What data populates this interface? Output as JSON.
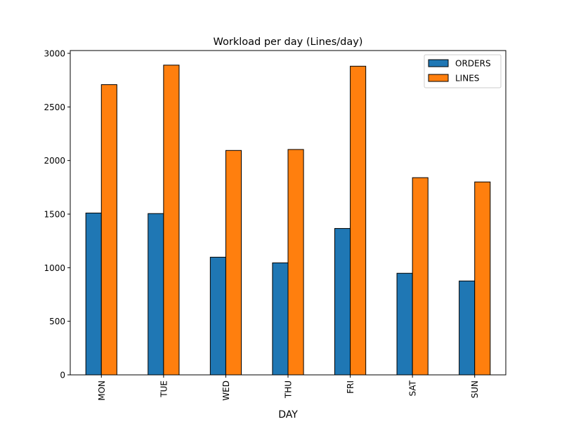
{
  "chart_data": {
    "type": "bar",
    "title": "Workload per day (Lines/day)",
    "xlabel": "DAY",
    "ylabel": "",
    "categories": [
      "MON",
      "TUE",
      "WED",
      "THU",
      "FRI",
      "SAT",
      "SUN"
    ],
    "series": [
      {
        "name": "ORDERS",
        "color": "#1f77b4",
        "values": [
          1510,
          1505,
          1098,
          1045,
          1366,
          948,
          876
        ]
      },
      {
        "name": "LINES",
        "color": "#ff7f0e",
        "values": [
          2708,
          2890,
          2094,
          2103,
          2880,
          1840,
          1800
        ]
      }
    ],
    "ylim": [
      0,
      3000
    ],
    "yticks": [
      "0",
      "500",
      "1000",
      "1500",
      "2000",
      "2500",
      "3000"
    ],
    "grid": false,
    "legend_position": "top-right"
  }
}
